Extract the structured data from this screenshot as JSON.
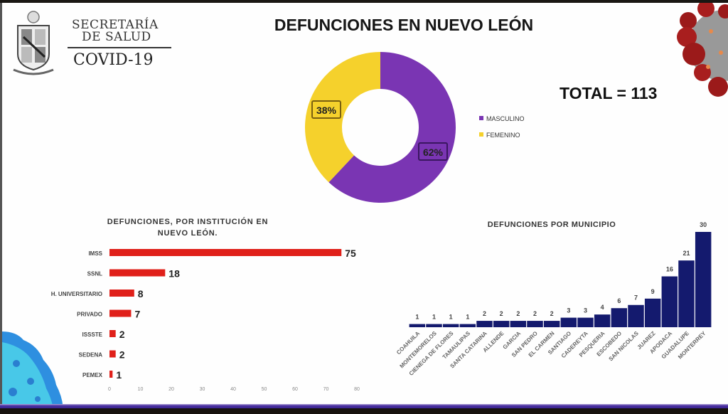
{
  "header": {
    "logo_line1": "SECRETARÍA",
    "logo_line2": "DE SALUD",
    "logo_line3": "COVID-19",
    "title": "DEFUNCIONES EN NUEVO LEÓN",
    "total": "TOTAL = 113"
  },
  "colors": {
    "masculino": "#7a35b3",
    "femenino": "#f5d12c",
    "institution_bar": "#e0201a",
    "municipio_bar": "#141a6e",
    "bottom_bar": "#4a2fa0"
  },
  "chart_data": [
    {
      "type": "pie",
      "title": "DEFUNCIONES EN NUEVO LEÓN",
      "donut": true,
      "labels": [
        "MASCULINO",
        "FEMENINO"
      ],
      "values": [
        62,
        38
      ],
      "data_labels": [
        "62%",
        "38%"
      ],
      "legend": "right"
    },
    {
      "type": "bar",
      "orientation": "horizontal",
      "title_line1": "DEFUNCIONES, POR INSTITUCIÓN EN",
      "title_line2": "NUEVO LEÓN.",
      "categories": [
        "IMSS",
        "SSNL",
        "H. UNIVERSITARIO",
        "PRIVADO",
        "ISSSTE",
        "SEDENA",
        "PEMEX"
      ],
      "values": [
        75,
        18,
        8,
        7,
        2,
        2,
        1
      ],
      "data_labels": [
        "75",
        "18",
        "8",
        "7",
        "2",
        "2",
        "1"
      ],
      "xlim": [
        0,
        80
      ],
      "xticks": [
        "0",
        "10",
        "20",
        "30",
        "40",
        "50",
        "60",
        "70",
        "80"
      ],
      "grid": false
    },
    {
      "type": "bar",
      "orientation": "vertical",
      "title": "DEFUNCIONES POR MUNICIPIO",
      "categories": [
        "COAHUILA",
        "MONTEMORELOS",
        "CIENEGA DE FLORES",
        "TAMAULIPAS",
        "SANTA CATARINA",
        "ALLENDE",
        "GARCIA",
        "SAN PEDRO",
        "EL CARMEN",
        "SANTIAGO",
        "CADEREYTA",
        "PESQUERIA",
        "ESCOBEDO",
        "SAN NICOLAS",
        "JUAREZ",
        "APODACA",
        "GUADALUPE",
        "MONTERREY"
      ],
      "values": [
        1,
        1,
        1,
        1,
        2,
        2,
        2,
        2,
        2,
        3,
        3,
        4,
        6,
        7,
        9,
        16,
        21,
        30
      ],
      "data_labels": [
        "1",
        "1",
        "1",
        "1",
        "2",
        "2",
        "2",
        "2",
        "2",
        "3",
        "3",
        "4",
        "6",
        "7",
        "9",
        "16",
        "21",
        "30"
      ],
      "ylim": [
        0,
        30
      ],
      "grid": false
    }
  ]
}
